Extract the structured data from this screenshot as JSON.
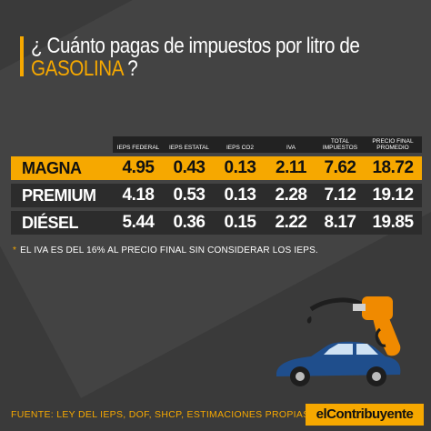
{
  "title": {
    "line1": "¿ Cuánto pagas de impuestos por litro de",
    "accent": "GASOLINA",
    "suffix": " ?"
  },
  "table": {
    "headers": [
      "IEPS FEDERAL",
      "IEPS ESTATAL",
      "IEPS CO2",
      "IVA",
      "TOTAL IMPUESTOS",
      "PRECIO FINAL PROMEDIO"
    ],
    "rows": [
      {
        "label": "MAGNA",
        "values": [
          "4.95",
          "0.43",
          "0.13",
          "2.11",
          "7.62",
          "18.72"
        ]
      },
      {
        "label": "PREMIUM",
        "values": [
          "4.18",
          "0.53",
          "0.13",
          "2.28",
          "7.12",
          "19.12"
        ]
      },
      {
        "label": "DIÉSEL",
        "values": [
          "5.44",
          "0.36",
          "0.15",
          "2.22",
          "8.17",
          "19.85"
        ]
      }
    ]
  },
  "note": {
    "star": "*",
    "text": "EL IVA ES DEL 16% AL PRECIO FINAL SIN CONSIDERAR LOS IEPS."
  },
  "source": "FUENTE: LEY DEL IEPS, DOF, SHCP, ESTIMACIONES PROPIAS.",
  "brand": "elContribuyente",
  "colors": {
    "accent": "#f6a800",
    "background": "#3a3a3a",
    "row": "#2c2c2c",
    "car": "#1f4e8c"
  },
  "icons": {
    "nozzle": "fuel-nozzle-icon",
    "car": "car-icon"
  }
}
